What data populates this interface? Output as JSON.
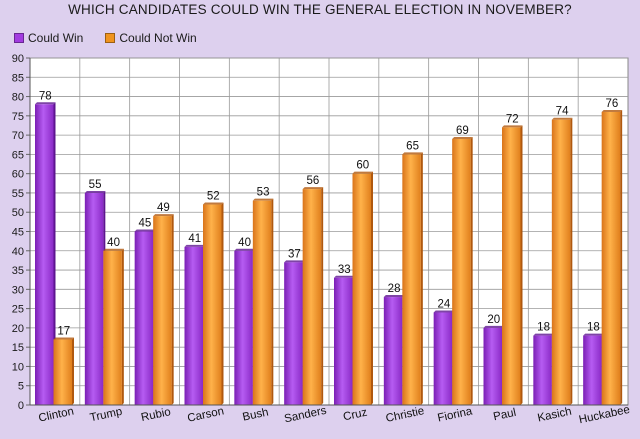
{
  "chart_data": {
    "type": "bar",
    "title": "WHICH CANDIDATES COULD WIN THE GENERAL ELECTION IN NOVEMBER?",
    "categories": [
      "Clinton",
      "Trump",
      "Rubio",
      "Carson",
      "Bush",
      "Sanders",
      "Cruz",
      "Christie",
      "Fiorina",
      "Paul",
      "Kasich",
      "Huckabee"
    ],
    "series": [
      {
        "name": "Could Win",
        "color": "#a23be0",
        "values": [
          78,
          55,
          45,
          41,
          40,
          37,
          33,
          28,
          24,
          20,
          18,
          18
        ]
      },
      {
        "name": "Could Not Win",
        "color": "#f0941e",
        "values": [
          17,
          40,
          49,
          52,
          53,
          56,
          60,
          65,
          69,
          72,
          74,
          76
        ]
      }
    ],
    "ylim": [
      0,
      90
    ],
    "yticks": [
      0,
      5,
      10,
      15,
      20,
      25,
      30,
      35,
      40,
      45,
      50,
      55,
      60,
      65,
      70,
      75,
      80,
      85,
      90
    ],
    "grid": true,
    "legend_position": "top-left",
    "background": "#ddd0ee"
  }
}
